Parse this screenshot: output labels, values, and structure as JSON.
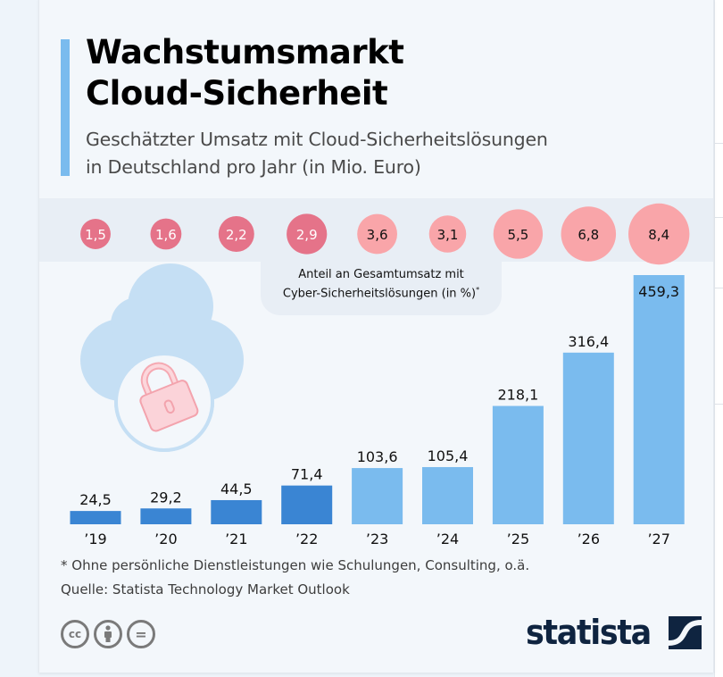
{
  "header": {
    "title_line1": "Wachstumsmarkt",
    "title_line2": "Cloud-Sicherheit",
    "subtitle_line1": "Geschätzter Umsatz mit Cloud-Sicherheitslösungen",
    "subtitle_line2": "in Deutschland pro Jahr (in Mio. Euro)"
  },
  "legend": {
    "line1": "Anteil an Gesamtumsatz mit",
    "line2": "Cyber-Sicherheitslösungen (in %)",
    "marker": "*"
  },
  "colors": {
    "accent": "#7abbee",
    "bar_historic": "#3a85d3",
    "bar_forecast": "#7abbee",
    "bubble_dark": "#e57389",
    "bubble_light": "#f9a5a9",
    "logo": "#0f2440"
  },
  "chart_data": {
    "type": "bar",
    "title": "Wachstumsmarkt Cloud-Sicherheit",
    "subtitle": "Geschätzter Umsatz mit Cloud-Sicherheitslösungen in Deutschland pro Jahr (in Mio. Euro)",
    "xlabel": "",
    "ylabel": "",
    "categories": [
      "’19",
      "’20",
      "’21",
      "’22",
      "’23",
      "’24",
      "’25",
      "’26",
      "’27"
    ],
    "ylim": [
      0,
      459.3
    ],
    "grid": false,
    "series": [
      {
        "name": "Umsatz (Mio. Euro)",
        "values": [
          24.5,
          29.2,
          44.5,
          71.4,
          103.6,
          105.4,
          218.1,
          316.4,
          459.3
        ],
        "labels": [
          "24,5",
          "29,2",
          "44,5",
          "71,4",
          "103,6",
          "105,4",
          "218,1",
          "316,4",
          "459,3"
        ],
        "forecast": [
          false,
          false,
          false,
          false,
          true,
          true,
          true,
          true,
          true
        ]
      },
      {
        "name": "Anteil an Gesamtumsatz mit Cyber-Sicherheitslösungen (in %)",
        "type": "bubble",
        "values": [
          1.5,
          1.6,
          2.2,
          2.9,
          3.6,
          3.1,
          5.5,
          6.8,
          8.4
        ],
        "labels": [
          "1,5",
          "1,6",
          "2,2",
          "2,9",
          "3,6",
          "3,1",
          "5,5",
          "6,8",
          "8,4"
        ],
        "forecast": [
          false,
          false,
          false,
          false,
          true,
          true,
          true,
          true,
          true
        ]
      }
    ]
  },
  "footer": {
    "note": "* Ohne persönliche Dienstleistungen wie Schulungen, Consulting, o.ä.",
    "source": "Quelle: Statista Technology Market Outlook",
    "license_icons": [
      "cc-icon",
      "attribution-icon",
      "no-derivatives-icon"
    ],
    "cc_label": "cc",
    "nd_label": "=",
    "logo_text": "statista"
  }
}
